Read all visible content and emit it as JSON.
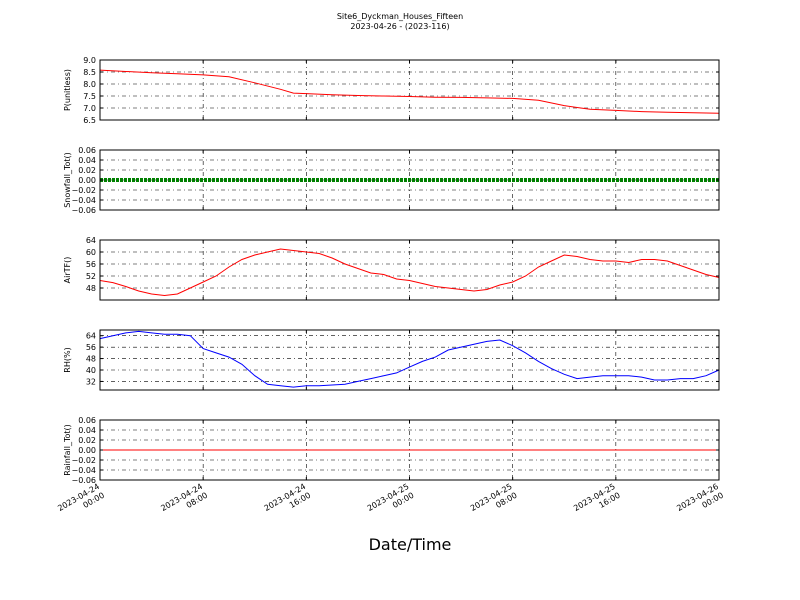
{
  "title": {
    "line1": "Site6_Dyckman_Houses_Fifteen",
    "line2": "2023-04-26 - (2023-116)"
  },
  "x_axis": {
    "label": "Date/Time",
    "ticks": [
      {
        "line1": "2023-04-24",
        "line2": "00:00",
        "hour": 0
      },
      {
        "line1": "2023-04-24",
        "line2": "08:00",
        "hour": 8
      },
      {
        "line1": "2023-04-24",
        "line2": "16:00",
        "hour": 16
      },
      {
        "line1": "2023-04-25",
        "line2": "00:00",
        "hour": 24
      },
      {
        "line1": "2023-04-25",
        "line2": "08:00",
        "hour": 32
      },
      {
        "line1": "2023-04-25",
        "line2": "16:00",
        "hour": 40
      },
      {
        "line1": "2023-04-26",
        "line2": "00:00",
        "hour": 48
      }
    ]
  },
  "chart_data": [
    {
      "type": "line",
      "ylabel": "P(unitless)",
      "ylim": [
        6.5,
        9.0
      ],
      "yticks": [
        "6.5",
        "7.0",
        "7.5",
        "8.0",
        "8.5",
        "9.0"
      ],
      "grid": true,
      "series": [
        {
          "color": "#ff0000",
          "points": [
            [
              0,
              8.58
            ],
            [
              2,
              8.52
            ],
            [
              4,
              8.47
            ],
            [
              6,
              8.43
            ],
            [
              8,
              8.38
            ],
            [
              10,
              8.3
            ],
            [
              12,
              8.05
            ],
            [
              14,
              7.78
            ],
            [
              15,
              7.62
            ],
            [
              16,
              7.6
            ],
            [
              18,
              7.55
            ],
            [
              20,
              7.52
            ],
            [
              22,
              7.5
            ],
            [
              24,
              7.48
            ],
            [
              26,
              7.45
            ],
            [
              28,
              7.44
            ],
            [
              30,
              7.42
            ],
            [
              32,
              7.4
            ],
            [
              34,
              7.32
            ],
            [
              36,
              7.1
            ],
            [
              37,
              7.02
            ],
            [
              38,
              6.95
            ],
            [
              40,
              6.9
            ],
            [
              42,
              6.85
            ],
            [
              44,
              6.82
            ],
            [
              46,
              6.8
            ],
            [
              48,
              6.78
            ]
          ]
        }
      ]
    },
    {
      "type": "line",
      "ylabel": "Snowfall_Tot()",
      "ylim": [
        -0.06,
        0.06
      ],
      "yticks": [
        "−0.06",
        "−0.04",
        "−0.02",
        "0.00",
        "0.02",
        "0.04",
        "0.06"
      ],
      "grid": true,
      "series": [
        {
          "color": "#008000",
          "points": [
            [
              0,
              0
            ],
            [
              48,
              0
            ]
          ]
        }
      ]
    },
    {
      "type": "line",
      "ylabel": "AirTF()",
      "ylim": [
        44,
        64
      ],
      "yticks": [
        "48",
        "52",
        "56",
        "60",
        "64"
      ],
      "grid": true,
      "series": [
        {
          "color": "#ff0000",
          "points": [
            [
              0,
              50.5
            ],
            [
              1,
              49.8
            ],
            [
              2,
              48.5
            ],
            [
              3,
              47
            ],
            [
              4,
              46
            ],
            [
              5,
              45.5
            ],
            [
              6,
              46
            ],
            [
              7,
              48
            ],
            [
              8,
              50
            ],
            [
              9,
              52
            ],
            [
              10,
              55
            ],
            [
              11,
              57.5
            ],
            [
              12,
              59
            ],
            [
              13,
              60
            ],
            [
              14,
              61
            ],
            [
              15,
              60.5
            ],
            [
              16,
              60
            ],
            [
              17,
              59.5
            ],
            [
              18,
              58
            ],
            [
              19,
              56
            ],
            [
              20,
              54.5
            ],
            [
              21,
              53
            ],
            [
              22,
              52.5
            ],
            [
              23,
              51
            ],
            [
              24,
              50.5
            ],
            [
              25,
              49.5
            ],
            [
              26,
              48.5
            ],
            [
              27,
              48
            ],
            [
              28,
              47.5
            ],
            [
              29,
              47
            ],
            [
              30,
              47.5
            ],
            [
              31,
              49
            ],
            [
              32,
              50
            ],
            [
              33,
              52
            ],
            [
              34,
              55
            ],
            [
              35,
              57
            ],
            [
              36,
              59
            ],
            [
              37,
              58.5
            ],
            [
              38,
              57.5
            ],
            [
              39,
              57
            ],
            [
              40,
              57
            ],
            [
              41,
              56.5
            ],
            [
              42,
              57.5
            ],
            [
              43,
              57.5
            ],
            [
              44,
              57
            ],
            [
              45,
              55.5
            ],
            [
              46,
              54
            ],
            [
              47,
              52.5
            ],
            [
              48,
              51.5
            ]
          ]
        }
      ]
    },
    {
      "type": "line",
      "ylabel": "RH(%)",
      "ylim": [
        26,
        68
      ],
      "yticks": [
        "32",
        "40",
        "48",
        "56",
        "64"
      ],
      "grid": true,
      "series": [
        {
          "color": "#0000ff",
          "points": [
            [
              0,
              62
            ],
            [
              1,
              64
            ],
            [
              2,
              66
            ],
            [
              3,
              67
            ],
            [
              4,
              66
            ],
            [
              5,
              65
            ],
            [
              6,
              65
            ],
            [
              7,
              64
            ],
            [
              8,
              55
            ],
            [
              9,
              52
            ],
            [
              10,
              49
            ],
            [
              11,
              44
            ],
            [
              12,
              36
            ],
            [
              13,
              30
            ],
            [
              14,
              29
            ],
            [
              15,
              28
            ],
            [
              16,
              29
            ],
            [
              17,
              29
            ],
            [
              18,
              29.5
            ],
            [
              19,
              30
            ],
            [
              20,
              32
            ],
            [
              21,
              34
            ],
            [
              22,
              36
            ],
            [
              23,
              38
            ],
            [
              24,
              42
            ],
            [
              25,
              46
            ],
            [
              26,
              49
            ],
            [
              27,
              54
            ],
            [
              28,
              56
            ],
            [
              29,
              58
            ],
            [
              30,
              60
            ],
            [
              31,
              61
            ],
            [
              32,
              57
            ],
            [
              33,
              52
            ],
            [
              34,
              46
            ],
            [
              35,
              41
            ],
            [
              36,
              37
            ],
            [
              37,
              34
            ],
            [
              38,
              35
            ],
            [
              39,
              36
            ],
            [
              40,
              36
            ],
            [
              41,
              36
            ],
            [
              42,
              35
            ],
            [
              43,
              33
            ],
            [
              44,
              33
            ],
            [
              45,
              34
            ],
            [
              46,
              34
            ],
            [
              47,
              36
            ],
            [
              48,
              40
            ]
          ]
        }
      ]
    },
    {
      "type": "line",
      "ylabel": "Rainfall_Tot()",
      "ylim": [
        -0.06,
        0.06
      ],
      "yticks": [
        "−0.06",
        "−0.04",
        "−0.02",
        "0.00",
        "0.02",
        "0.04",
        "0.06"
      ],
      "grid": true,
      "series": [
        {
          "color": "#ff0000",
          "points": [
            [
              0,
              0
            ],
            [
              48,
              0
            ]
          ]
        }
      ]
    }
  ]
}
